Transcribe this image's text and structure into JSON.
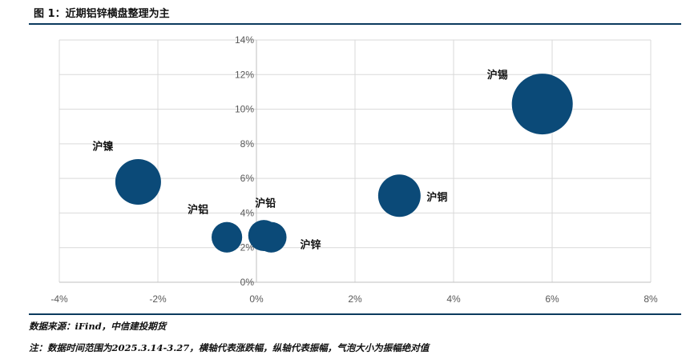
{
  "title": "图 1：近期铝锌横盘整理为主",
  "source": "数据来源：iFind，中信建投期货",
  "footnote": "注：数据时间范围为2025.3.14-3.27，横轴代表涨跌幅，纵轴代表振幅，气泡大小为振幅绝对值",
  "colors": {
    "bubble": "#0b4a78",
    "rule": "#0b3a5e",
    "grid": "#d9d9d9"
  },
  "chart_data": {
    "type": "bubble",
    "title": "",
    "xlabel": "",
    "ylabel": "",
    "xlim": [
      -0.04,
      0.08
    ],
    "ylim": [
      0,
      0.14
    ],
    "xticks": [
      "-4%",
      "-2%",
      "0%",
      "2%",
      "4%",
      "6%",
      "8%"
    ],
    "yticks": [
      "0%",
      "2%",
      "4%",
      "6%",
      "8%",
      "10%",
      "12%",
      "14%"
    ],
    "grid": true,
    "points": [
      {
        "name": "沪镍",
        "x": -0.024,
        "y": 0.058,
        "size": 0.058
      },
      {
        "name": "沪铝",
        "x": -0.006,
        "y": 0.026,
        "size": 0.026
      },
      {
        "name": "沪铅",
        "x": 0.0015,
        "y": 0.027,
        "size": 0.027
      },
      {
        "name": "沪锌",
        "x": 0.003,
        "y": 0.026,
        "size": 0.026
      },
      {
        "name": "沪铜",
        "x": 0.029,
        "y": 0.05,
        "size": 0.05
      },
      {
        "name": "沪锡",
        "x": 0.058,
        "y": 0.103,
        "size": 0.103
      }
    ]
  }
}
